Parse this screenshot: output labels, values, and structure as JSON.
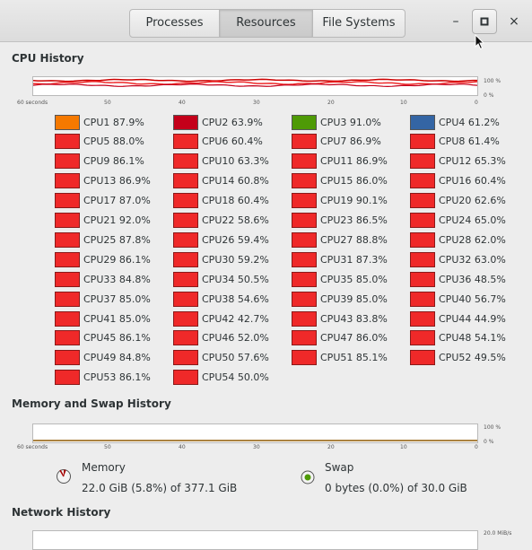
{
  "header": {
    "tabs": [
      {
        "label": "Processes",
        "active": false
      },
      {
        "label": "Resources",
        "active": true
      },
      {
        "label": "File Systems",
        "active": false
      }
    ],
    "minimize_glyph": "–",
    "maximize_glyph": "▫",
    "close_glyph": "×"
  },
  "colors": {
    "cpu_default": "#ef2929",
    "cpu1": "#f57900",
    "cpu2": "#c4001a",
    "cpu3": "#4e9a06",
    "cpu4": "#3465a4",
    "graph_line": "#cc0000",
    "memory_line": "#8f5902",
    "swap_icon": "#4e9a06"
  },
  "cpu": {
    "title": "CPU History",
    "x_ticks": [
      "60 seconds",
      "50",
      "40",
      "30",
      "20",
      "10",
      "0"
    ],
    "y_ticks": [
      "100 %",
      "0 %"
    ],
    "items": [
      {
        "label": "CPU1 87.9%"
      },
      {
        "label": "CPU2 63.9%"
      },
      {
        "label": "CPU3 91.0%"
      },
      {
        "label": "CPU4 61.2%"
      },
      {
        "label": "CPU5 88.0%"
      },
      {
        "label": "CPU6 60.4%"
      },
      {
        "label": "CPU7 86.9%"
      },
      {
        "label": "CPU8 61.4%"
      },
      {
        "label": "CPU9 86.1%"
      },
      {
        "label": "CPU10 63.3%"
      },
      {
        "label": "CPU11 86.9%"
      },
      {
        "label": "CPU12 65.3%"
      },
      {
        "label": "CPU13 86.9%"
      },
      {
        "label": "CPU14 60.8%"
      },
      {
        "label": "CPU15 86.0%"
      },
      {
        "label": "CPU16 60.4%"
      },
      {
        "label": "CPU17 87.0%"
      },
      {
        "label": "CPU18 60.4%"
      },
      {
        "label": "CPU19 90.1%"
      },
      {
        "label": "CPU20 62.6%"
      },
      {
        "label": "CPU21 92.0%"
      },
      {
        "label": "CPU22 58.6%"
      },
      {
        "label": "CPU23 86.5%"
      },
      {
        "label": "CPU24 65.0%"
      },
      {
        "label": "CPU25 87.8%"
      },
      {
        "label": "CPU26 59.4%"
      },
      {
        "label": "CPU27 88.8%"
      },
      {
        "label": "CPU28 62.0%"
      },
      {
        "label": "CPU29 86.1%"
      },
      {
        "label": "CPU30 59.2%"
      },
      {
        "label": "CPU31 87.3%"
      },
      {
        "label": "CPU32 63.0%"
      },
      {
        "label": "CPU33 84.8%"
      },
      {
        "label": "CPU34 50.5%"
      },
      {
        "label": "CPU35 85.0%"
      },
      {
        "label": "CPU36 48.5%"
      },
      {
        "label": "CPU37 85.0%"
      },
      {
        "label": "CPU38 54.6%"
      },
      {
        "label": "CPU39 85.0%"
      },
      {
        "label": "CPU40 56.7%"
      },
      {
        "label": "CPU41 85.0%"
      },
      {
        "label": "CPU42 42.7%"
      },
      {
        "label": "CPU43 83.8%"
      },
      {
        "label": "CPU44 44.9%"
      },
      {
        "label": "CPU45 86.1%"
      },
      {
        "label": "CPU46 52.0%"
      },
      {
        "label": "CPU47 86.0%"
      },
      {
        "label": "CPU48 54.1%"
      },
      {
        "label": "CPU49 84.8%"
      },
      {
        "label": "CPU50 57.6%"
      },
      {
        "label": "CPU51 85.1%"
      },
      {
        "label": "CPU52 49.5%"
      },
      {
        "label": "CPU53 86.1%"
      },
      {
        "label": "CPU54 50.0%"
      }
    ]
  },
  "memory": {
    "title": "Memory and Swap History",
    "x_ticks": [
      "60 seconds",
      "50",
      "40",
      "30",
      "20",
      "10",
      "0"
    ],
    "y_ticks": [
      "100 %",
      "0 %"
    ],
    "memory_label": "Memory",
    "memory_value": "22.0 GiB (5.8%) of 377.1 GiB",
    "memory_fraction": 0.058,
    "swap_label": "Swap",
    "swap_value": "0 bytes (0.0%) of 30.0 GiB",
    "swap_fraction": 0.0
  },
  "network": {
    "title": "Network History",
    "y_top_tick": "20.0 MiB/s"
  }
}
